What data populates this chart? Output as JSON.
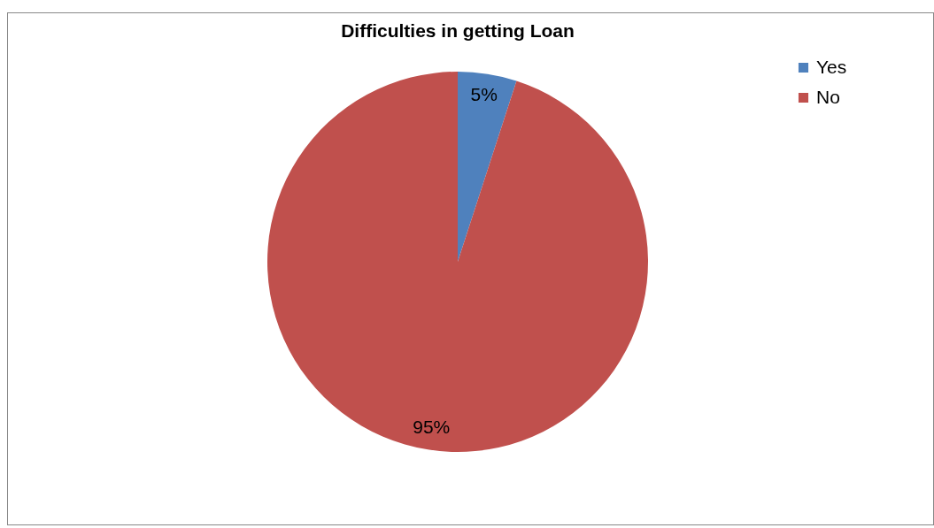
{
  "chart_data": {
    "type": "pie",
    "title": "Difficulties in getting Loan",
    "categories": [
      "Yes",
      "No"
    ],
    "values": [
      5,
      95
    ],
    "colors": [
      "#4f81bd",
      "#c0504d"
    ],
    "value_labels": [
      "5%",
      "95%"
    ],
    "legend": "right"
  }
}
